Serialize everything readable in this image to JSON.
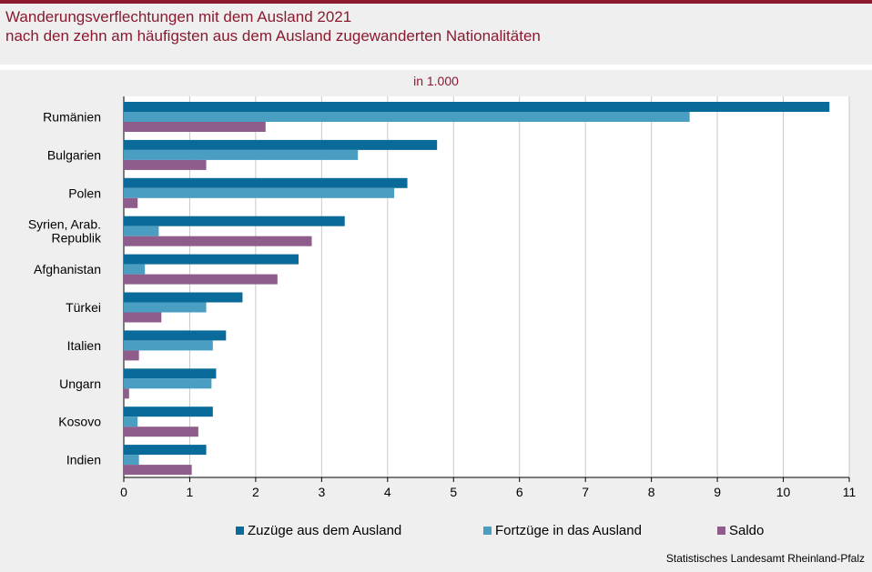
{
  "header": {
    "title_line1": "Wanderungsverflechtungen mit dem Ausland 2021",
    "title_line2": "nach den zehn am häufigsten aus dem Ausland zugewanderten Nationalitäten"
  },
  "colors": {
    "brand": "#8b1a2f",
    "zuzuege": "#0a6a9a",
    "fortzuege": "#4a9ec2",
    "saldo": "#8e5d8c"
  },
  "source": "Statistisches Landesamt Rheinland-Pfalz",
  "chart_data": {
    "type": "bar",
    "orientation": "horizontal",
    "unit_label": "in 1.000",
    "categories": [
      [
        "Rumänien"
      ],
      [
        "Bulgarien"
      ],
      [
        "Polen"
      ],
      [
        "Syrien, Arab.",
        "Republik"
      ],
      [
        "Afghanistan"
      ],
      [
        "Türkei"
      ],
      [
        "Italien"
      ],
      [
        "Ungarn"
      ],
      [
        "Kosovo"
      ],
      [
        "Indien"
      ]
    ],
    "series": [
      {
        "name": "Zuzüge aus dem Ausland",
        "color_key": "zuzuege",
        "values": [
          10.7,
          4.75,
          4.3,
          3.35,
          2.65,
          1.8,
          1.55,
          1.4,
          1.35,
          1.25
        ]
      },
      {
        "name": "Fortzüge in das Ausland",
        "color_key": "fortzuege",
        "values": [
          8.58,
          3.55,
          4.1,
          0.53,
          0.32,
          1.25,
          1.35,
          1.33,
          0.21,
          0.23
        ]
      },
      {
        "name": "Saldo",
        "color_key": "saldo",
        "values": [
          2.15,
          1.25,
          0.21,
          2.85,
          2.33,
          0.57,
          0.23,
          0.08,
          1.13,
          1.03
        ]
      }
    ],
    "xlim": [
      0,
      11
    ],
    "xticks": [
      0,
      1,
      2,
      3,
      4,
      5,
      6,
      7,
      8,
      9,
      10,
      11
    ],
    "grid": true,
    "legend": "bottom"
  }
}
